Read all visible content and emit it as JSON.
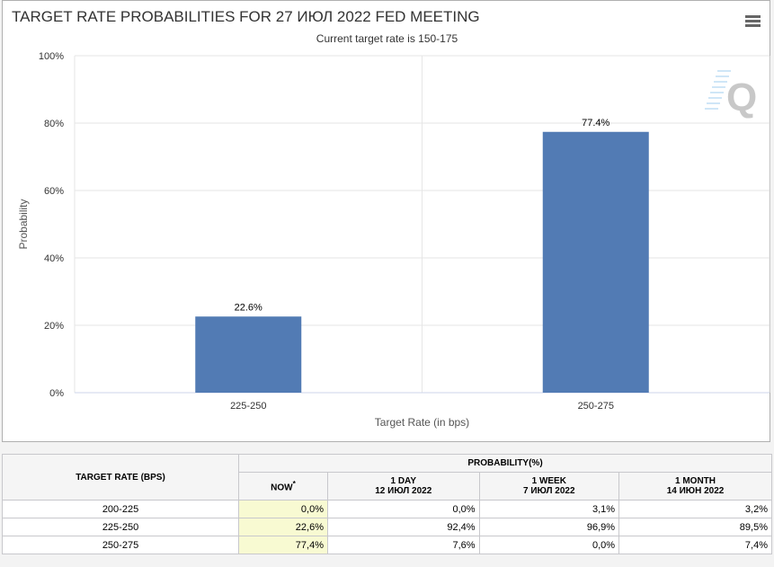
{
  "chart_data": {
    "type": "bar",
    "title": "TARGET RATE PROBABILITIES FOR 27 ИЮЛ 2022 FED MEETING",
    "subtitle": "Current target rate is 150-175",
    "categories": [
      "225-250",
      "250-275"
    ],
    "values": [
      22.6,
      77.4
    ],
    "data_labels": [
      "22.6%",
      "77.4%"
    ],
    "xlabel": "Target Rate (in bps)",
    "ylabel": "Probability",
    "ylim": [
      0,
      100
    ],
    "yticks": [
      "0%",
      "20%",
      "40%",
      "60%",
      "80%",
      "100%"
    ],
    "grid": true,
    "bar_color": "#527bb4"
  },
  "table": {
    "header_rate": "TARGET RATE (BPS)",
    "header_prob": "PROBABILITY(%)",
    "cols": [
      {
        "l1": "NOW",
        "sup": "*",
        "l2": ""
      },
      {
        "l1": "1 DAY",
        "l2": "12 ИЮЛ 2022"
      },
      {
        "l1": "1 WEEK",
        "l2": "7 ИЮЛ 2022"
      },
      {
        "l1": "1 MONTH",
        "l2": "14 ИЮН 2022"
      }
    ],
    "rows": [
      {
        "rate": "200-225",
        "v": [
          "0,0%",
          "0,0%",
          "3,1%",
          "3,2%"
        ]
      },
      {
        "rate": "225-250",
        "v": [
          "22,6%",
          "92,4%",
          "96,9%",
          "89,5%"
        ]
      },
      {
        "rate": "250-275",
        "v": [
          "77,4%",
          "7,6%",
          "0,0%",
          "7,4%"
        ]
      }
    ]
  }
}
